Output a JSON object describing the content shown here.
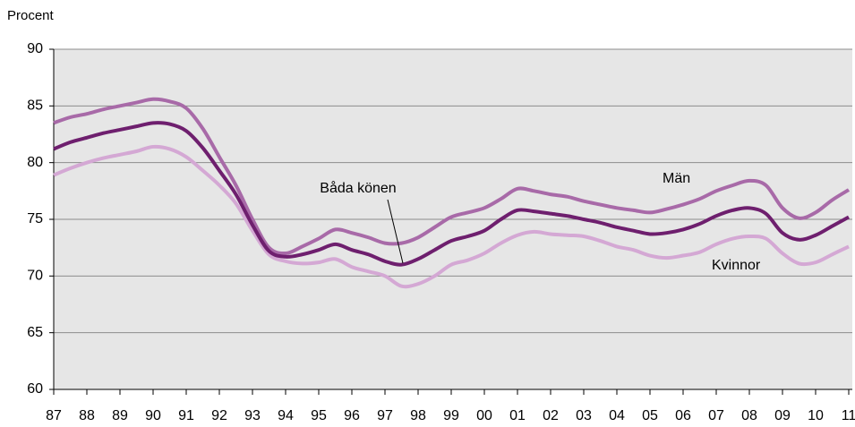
{
  "chart_data": {
    "type": "line",
    "y_label": "Procent",
    "categories": [
      "87",
      null,
      "88",
      null,
      "89",
      null,
      "90",
      null,
      "91",
      null,
      "92",
      null,
      "93",
      null,
      "94",
      null,
      "95",
      null,
      "96",
      null,
      "97",
      null,
      "98",
      null,
      "99",
      null,
      "00",
      null,
      "01",
      null,
      "02",
      null,
      "03",
      null,
      "04",
      null,
      "05",
      null,
      "06",
      null,
      "07",
      null,
      "08",
      null,
      "09",
      null,
      "10",
      null,
      "11"
    ],
    "series": [
      {
        "name": "Män",
        "color": "#a86aa8",
        "values": [
          83.5,
          84.0,
          84.3,
          84.7,
          85.0,
          85.3,
          85.6,
          85.4,
          84.8,
          83.0,
          80.5,
          78.0,
          75.0,
          72.5,
          72.0,
          72.6,
          73.3,
          74.1,
          73.8,
          73.4,
          72.9,
          72.9,
          73.4,
          74.3,
          75.2,
          75.6,
          76.0,
          76.8,
          77.7,
          77.5,
          77.2,
          77.0,
          76.6,
          76.3,
          76.0,
          75.8,
          75.6,
          75.9,
          76.3,
          76.8,
          77.5,
          78.0,
          78.4,
          78.0,
          76.0,
          75.1,
          75.6,
          76.7,
          77.6
        ]
      },
      {
        "name": "Båda könen",
        "color": "#6e1f6e",
        "values": [
          81.2,
          81.8,
          82.2,
          82.6,
          82.9,
          83.2,
          83.5,
          83.4,
          82.8,
          81.3,
          79.3,
          77.2,
          74.5,
          72.2,
          71.7,
          71.9,
          72.3,
          72.8,
          72.3,
          71.9,
          71.3,
          71.0,
          71.5,
          72.3,
          73.1,
          73.5,
          74.0,
          75.0,
          75.8,
          75.7,
          75.5,
          75.3,
          75.0,
          74.7,
          74.3,
          74.0,
          73.7,
          73.8,
          74.1,
          74.6,
          75.3,
          75.8,
          76.0,
          75.5,
          73.8,
          73.2,
          73.6,
          74.4,
          75.2
        ]
      },
      {
        "name": "Kvinnor",
        "color": "#d4a8d4",
        "values": [
          78.9,
          79.5,
          80.0,
          80.4,
          80.7,
          81.0,
          81.4,
          81.2,
          80.5,
          79.3,
          78.0,
          76.4,
          74.0,
          71.9,
          71.3,
          71.1,
          71.2,
          71.5,
          70.8,
          70.4,
          70.0,
          69.1,
          69.3,
          70.0,
          71.0,
          71.4,
          72.0,
          72.9,
          73.6,
          73.9,
          73.7,
          73.6,
          73.5,
          73.1,
          72.6,
          72.3,
          71.8,
          71.6,
          71.8,
          72.1,
          72.8,
          73.3,
          73.5,
          73.3,
          72.0,
          71.1,
          71.2,
          71.9,
          72.6
        ]
      }
    ],
    "ylim": [
      60,
      90
    ],
    "yticks": [
      60,
      65,
      70,
      75,
      80,
      85,
      90
    ],
    "grid": true
  }
}
